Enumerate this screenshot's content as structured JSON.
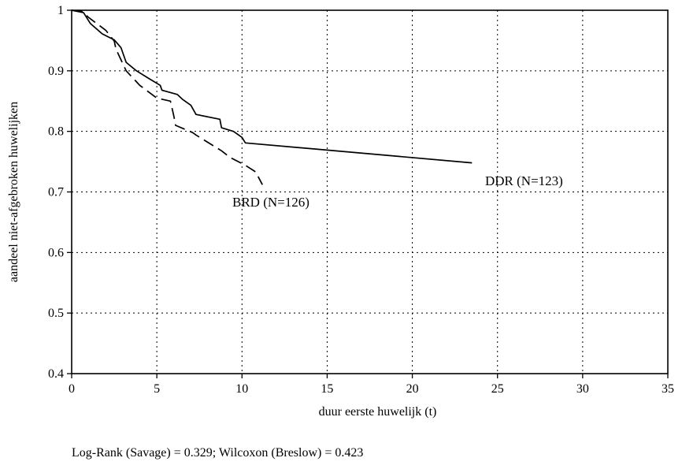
{
  "chart_data": {
    "type": "line",
    "xlabel": "duur eerste huwelijk (t)",
    "ylabel": "aandeel niet-afgebroken huwelijken",
    "xlim": [
      0,
      35
    ],
    "ylim": [
      0.4,
      1
    ],
    "xticks": [
      0,
      5,
      10,
      15,
      20,
      25,
      30,
      35
    ],
    "yticks": [
      0.4,
      0.5,
      0.6,
      0.7,
      0.8,
      0.9,
      1
    ],
    "ytick_labels": [
      "0.4",
      "0.5",
      "0.6",
      "0.7",
      "0.8",
      "0.9",
      "1"
    ],
    "grid": true,
    "footnote": "Log-Rank (Savage) = 0.329; Wilcoxon (Breslow) = 0.423",
    "series": [
      {
        "name": "DDR (N=123)",
        "line_style": "solid",
        "points": [
          [
            0,
            1
          ],
          [
            0.7,
            0.996
          ],
          [
            1.1,
            0.978
          ],
          [
            1.8,
            0.961
          ],
          [
            2.5,
            0.951
          ],
          [
            2.9,
            0.938
          ],
          [
            3.2,
            0.914
          ],
          [
            3.8,
            0.9
          ],
          [
            4.5,
            0.888
          ],
          [
            5.2,
            0.876
          ],
          [
            5.3,
            0.868
          ],
          [
            6.2,
            0.861
          ],
          [
            6.5,
            0.853
          ],
          [
            7.0,
            0.843
          ],
          [
            7.3,
            0.828
          ],
          [
            8.7,
            0.82
          ],
          [
            8.8,
            0.806
          ],
          [
            9.5,
            0.8
          ],
          [
            10.0,
            0.79
          ],
          [
            10.2,
            0.781
          ],
          [
            23.5,
            0.748
          ]
        ]
      },
      {
        "name": "BRD (N=126)",
        "line_style": "dashed",
        "points": [
          [
            0,
            1
          ],
          [
            0.6,
            0.998
          ],
          [
            1.0,
            0.988
          ],
          [
            2.0,
            0.967
          ],
          [
            2.5,
            0.949
          ],
          [
            2.6,
            0.936
          ],
          [
            2.9,
            0.918
          ],
          [
            3.2,
            0.9
          ],
          [
            4.0,
            0.876
          ],
          [
            5.0,
            0.855
          ],
          [
            5.8,
            0.85
          ],
          [
            6.0,
            0.825
          ],
          [
            6.1,
            0.81
          ],
          [
            7.1,
            0.798
          ],
          [
            7.3,
            0.794
          ],
          [
            8.8,
            0.768
          ],
          [
            9.3,
            0.757
          ],
          [
            10.2,
            0.744
          ],
          [
            10.8,
            0.733
          ],
          [
            11.2,
            0.712
          ]
        ]
      }
    ]
  }
}
